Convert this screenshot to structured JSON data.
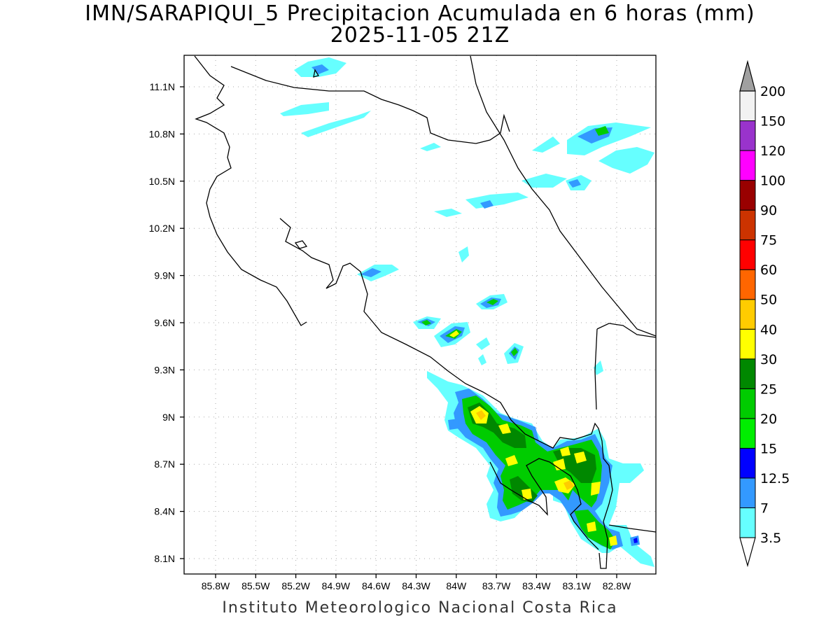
{
  "title": {
    "line1": "IMN/SARAPIQUI_5 Precipitacion Acumulada en 6 horas (mm)",
    "line2": "2025-11-05 21Z"
  },
  "footer": "Instituto Meteorologico Nacional Costa Rica",
  "axes": {
    "lon_ticks": [
      "85.8W",
      "85.5W",
      "85.2W",
      "84.9W",
      "84.6W",
      "84.3W",
      "84W",
      "83.7W",
      "83.4W",
      "83.1W",
      "82.8W"
    ],
    "lat_ticks": [
      "11.1N",
      "10.8N",
      "10.5N",
      "10.2N",
      "9.9N",
      "9.6N",
      "9.3N",
      "9N",
      "8.7N",
      "8.4N",
      "8.1N"
    ]
  },
  "colorbar": {
    "levels": [
      "3.5",
      "7",
      "12.5",
      "15",
      "20",
      "25",
      "30",
      "40",
      "50",
      "60",
      "75",
      "90",
      "100",
      "120",
      "150",
      "200"
    ],
    "colors": [
      "#66ffff",
      "#3399ff",
      "#0000ff",
      "#00ee00",
      "#00cc00",
      "#008800",
      "#ffff00",
      "#ffcc00",
      "#ff6600",
      "#ff0000",
      "#cc3300",
      "#990000",
      "#ff00ff",
      "#9933cc",
      "#f2f2f2",
      "#a0a0a0",
      "#ffffff"
    ]
  }
}
